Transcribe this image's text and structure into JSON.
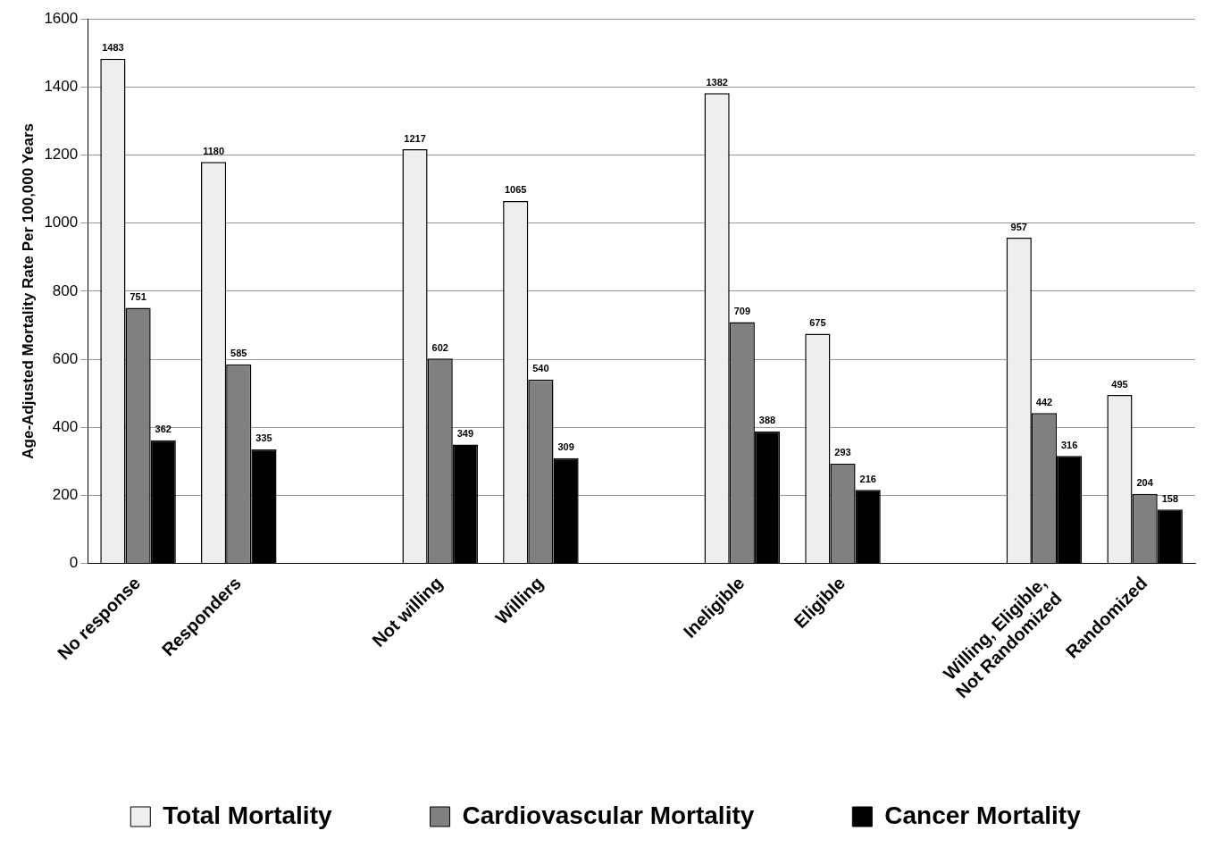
{
  "chart_data": {
    "type": "bar",
    "ylabel": "Age-Adjusted Mortality Rate Per 100,000 Years",
    "categories": [
      "No response",
      "Responders",
      null,
      "Not willing",
      "Willing",
      null,
      "Ineligible",
      "Eligible",
      null,
      "Willing, Eligible,\nNot Randomized",
      "Randomized"
    ],
    "series": [
      {
        "name": "Total Mortality",
        "color": "#eeeeee",
        "values": [
          1483,
          1180,
          null,
          1217,
          1065,
          null,
          1382,
          675,
          null,
          957,
          495
        ]
      },
      {
        "name": "Cardiovascular Mortality",
        "color": "#808080",
        "values": [
          751,
          585,
          null,
          602,
          540,
          null,
          709,
          293,
          null,
          442,
          204
        ]
      },
      {
        "name": "Cancer Mortality",
        "color": "#000000",
        "values": [
          362,
          335,
          null,
          349,
          309,
          null,
          388,
          216,
          null,
          316,
          158
        ]
      }
    ],
    "ylim": [
      0,
      1600
    ],
    "yticks": [
      0,
      200,
      400,
      600,
      800,
      1000,
      1200,
      1400,
      1600
    ],
    "grid": "y",
    "legend": "bottom",
    "data_labels": true
  }
}
